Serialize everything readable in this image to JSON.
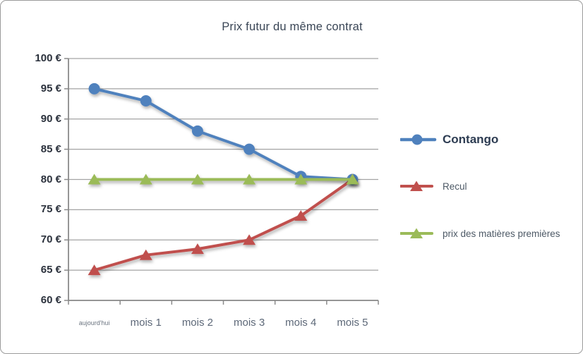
{
  "chart_data": {
    "type": "line",
    "title": "Prix futur du même contrat",
    "categories": [
      "aujourd'hui",
      "mois 1",
      "mois 2",
      "mois 3",
      "mois 4",
      "mois 5"
    ],
    "series": [
      {
        "name": "Contango",
        "values": [
          95,
          93,
          88,
          85,
          80.5,
          80
        ],
        "color": "#4F81BD",
        "marker": "circle"
      },
      {
        "name": "Recul",
        "values": [
          65,
          67.5,
          68.5,
          70,
          74,
          80
        ],
        "color": "#C0504D",
        "marker": "triangle"
      },
      {
        "name": "prix des matières premières",
        "values": [
          80,
          80,
          80,
          80,
          80,
          80
        ],
        "color": "#9BBB59",
        "marker": "triangle"
      }
    ],
    "ylim": [
      60,
      100
    ],
    "ytick_step": 5,
    "ytick_labels": [
      "100 €",
      "95 €",
      "90 €",
      "85 €",
      "80 €",
      "75 €",
      "70 €",
      "65 €",
      "60 €"
    ],
    "grid": true,
    "legend_position": "right",
    "gridline_color": "#a3a3a3",
    "axis_color": "#8a8a8a"
  }
}
